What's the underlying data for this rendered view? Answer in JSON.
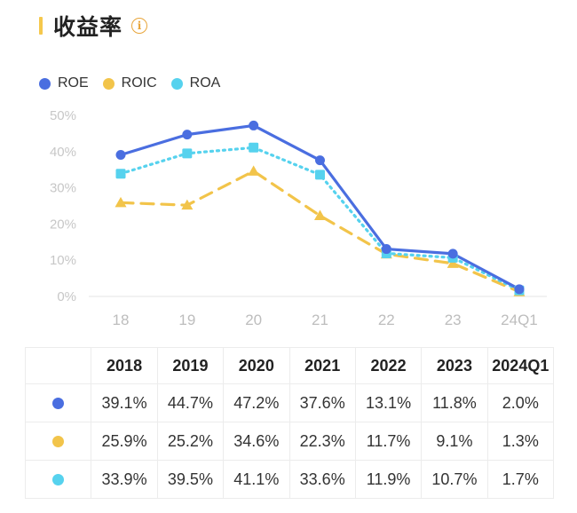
{
  "header": {
    "title": "收益率",
    "info_glyph": "i"
  },
  "colors": {
    "roe": "#4A6EE0",
    "roic": "#F2C44A",
    "roa": "#56D2EE",
    "accent": "#F5C84C"
  },
  "legend": [
    {
      "label": "ROE",
      "color": "#4A6EE0"
    },
    {
      "label": "ROIC",
      "color": "#F2C44A"
    },
    {
      "label": "ROA",
      "color": "#56D2EE"
    }
  ],
  "chart_data": {
    "type": "line",
    "categories": [
      "18",
      "19",
      "20",
      "21",
      "22",
      "23",
      "24Q1"
    ],
    "yticks": [
      "0%",
      "10%",
      "20%",
      "30%",
      "40%",
      "50%"
    ],
    "ylim": [
      0,
      50
    ],
    "grid": false,
    "legend_position": "top-left",
    "series": [
      {
        "name": "ROE",
        "color": "#4A6EE0",
        "style": "solid",
        "marker": "circle",
        "values": [
          39.1,
          44.7,
          47.2,
          37.6,
          13.1,
          11.8,
          2.0
        ]
      },
      {
        "name": "ROIC",
        "color": "#F2C44A",
        "style": "dashed",
        "marker": "triangle",
        "values": [
          25.9,
          25.2,
          34.6,
          22.3,
          11.7,
          9.1,
          1.3
        ]
      },
      {
        "name": "ROA",
        "color": "#56D2EE",
        "style": "dotted",
        "marker": "square",
        "values": [
          33.9,
          39.5,
          41.1,
          33.6,
          11.9,
          10.7,
          1.7
        ]
      }
    ]
  },
  "table": {
    "headers": [
      "2018",
      "2019",
      "2020",
      "2021",
      "2022",
      "2023",
      "2024Q1"
    ],
    "rows": [
      {
        "color": "#4A6EE0",
        "cells": [
          "39.1%",
          "44.7%",
          "47.2%",
          "37.6%",
          "13.1%",
          "11.8%",
          "2.0%"
        ]
      },
      {
        "color": "#F2C44A",
        "cells": [
          "25.9%",
          "25.2%",
          "34.6%",
          "22.3%",
          "11.7%",
          "9.1%",
          "1.3%"
        ]
      },
      {
        "color": "#56D2EE",
        "cells": [
          "33.9%",
          "39.5%",
          "41.1%",
          "33.6%",
          "11.9%",
          "10.7%",
          "1.7%"
        ]
      }
    ]
  }
}
